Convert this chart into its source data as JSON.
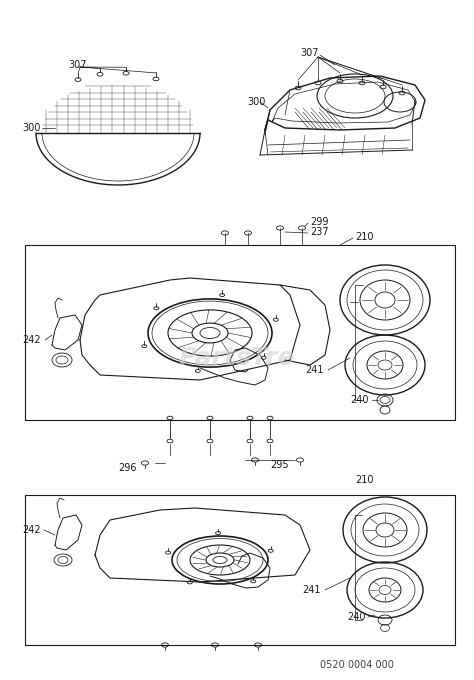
{
  "bg_color": "#ffffff",
  "line_color": "#1a1a1a",
  "label_color": "#1a1a1a",
  "watermark_text": "PartsTre",
  "watermark_color": "#d0d0d0",
  "part_number": "0520 0004 000",
  "figsize": [
    4.74,
    6.8
  ],
  "dpi": 100
}
